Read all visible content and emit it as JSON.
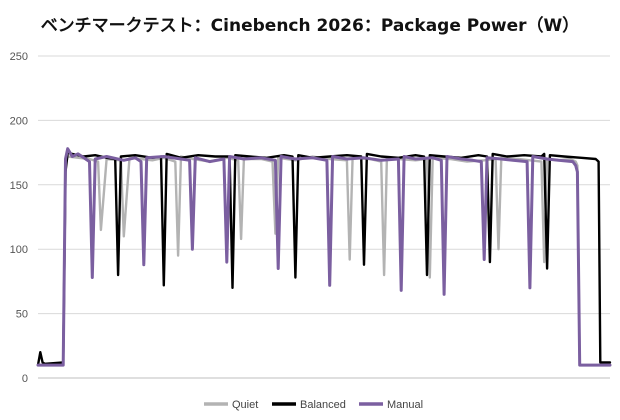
{
  "chart_data": {
    "type": "line",
    "title": "ベンチマークテスト：Cinebench 2026：Package Power（W）",
    "xlabel": "",
    "ylabel": "",
    "ylim": [
      0,
      250
    ],
    "yticks": [
      0,
      50,
      100,
      150,
      200,
      250
    ],
    "grid": true,
    "legend": "bottom-center",
    "x_range": [
      0,
      100
    ],
    "series": [
      {
        "name": "Quiet",
        "color": "#b3b3b3",
        "x": [
          0,
          4.4,
          4.8,
          5.2,
          9,
          10.5,
          11,
          12,
          14.5,
          15,
          16,
          18,
          20,
          22,
          24,
          24.5,
          25,
          27,
          30,
          33,
          35,
          35.5,
          36,
          39,
          41,
          41.5,
          42,
          45,
          48,
          51,
          54,
          54.5,
          55,
          58,
          60,
          60.5,
          61,
          63,
          66,
          68,
          68.5,
          69,
          72,
          75,
          78,
          80,
          80.5,
          81,
          84,
          86,
          88,
          88.5,
          89,
          91,
          93,
          94,
          94.3,
          94.7,
          100
        ],
        "values": [
          10,
          10,
          165,
          172,
          170,
          168,
          115,
          170,
          169,
          110,
          171,
          170,
          169,
          171,
          168,
          95,
          172,
          170,
          168,
          171,
          169,
          108,
          170,
          170,
          168,
          112,
          171,
          169,
          172,
          170,
          169,
          92,
          171,
          170,
          168,
          80,
          171,
          170,
          169,
          170,
          78,
          171,
          170,
          168,
          169,
          170,
          100,
          171,
          170,
          169,
          168,
          90,
          170,
          169,
          170,
          168,
          165,
          10,
          10
        ]
      },
      {
        "name": "Balanced",
        "color": "#000000",
        "x": [
          0,
          0.4,
          0.8,
          1.2,
          4.4,
          4.8,
          5.2,
          6,
          8,
          10,
          12,
          13.5,
          14,
          14.5,
          17,
          20,
          21.5,
          22,
          22.5,
          25,
          28,
          31,
          33.5,
          34,
          34.5,
          37,
          40,
          43,
          44.5,
          45,
          45.5,
          48,
          51,
          54,
          56.5,
          57,
          57.5,
          60,
          63,
          66,
          67.5,
          68,
          68.5,
          71,
          74,
          77,
          78.5,
          79,
          79.5,
          82,
          85,
          88,
          88.5,
          89,
          89.5,
          92,
          95,
          97.5,
          98,
          98.3,
          100
        ],
        "values": [
          10,
          20,
          12,
          11,
          12,
          160,
          175,
          174,
          172,
          173,
          171,
          170,
          80,
          172,
          173,
          171,
          172,
          72,
          174,
          171,
          173,
          172,
          172,
          70,
          173,
          172,
          171,
          173,
          172,
          78,
          173,
          171,
          172,
          173,
          172,
          88,
          174,
          172,
          171,
          173,
          172,
          80,
          173,
          172,
          171,
          173,
          172,
          90,
          174,
          172,
          173,
          172,
          174,
          85,
          173,
          172,
          171,
          170,
          168,
          12,
          12
        ]
      },
      {
        "name": "Manual",
        "color": "#7b5fa0",
        "x": [
          0,
          4.4,
          4.8,
          5.2,
          6,
          7,
          8,
          9,
          9.5,
          10,
          12,
          15,
          17,
          18,
          18.5,
          19,
          22,
          25,
          26.5,
          27,
          27.5,
          30,
          32.5,
          33,
          33.5,
          36,
          39,
          41.5,
          42,
          42.5,
          45,
          48,
          50.5,
          51,
          51.5,
          54,
          57,
          60,
          63,
          63.5,
          64,
          66,
          69,
          70.5,
          71,
          71.5,
          74,
          76,
          77.5,
          78,
          78.5,
          81,
          83,
          85.5,
          86,
          86.5,
          89,
          91,
          93.5,
          94,
          94.3,
          94.7,
          100
        ],
        "values": [
          10,
          10,
          170,
          178,
          172,
          174,
          171,
          168,
          78,
          170,
          172,
          169,
          171,
          168,
          88,
          171,
          172,
          170,
          169,
          100,
          171,
          168,
          170,
          90,
          172,
          170,
          171,
          169,
          85,
          172,
          170,
          171,
          169,
          72,
          172,
          170,
          171,
          169,
          170,
          68,
          172,
          170,
          171,
          169,
          65,
          172,
          170,
          169,
          168,
          92,
          171,
          170,
          169,
          168,
          70,
          172,
          170,
          169,
          168,
          165,
          160,
          10,
          10
        ]
      }
    ]
  }
}
